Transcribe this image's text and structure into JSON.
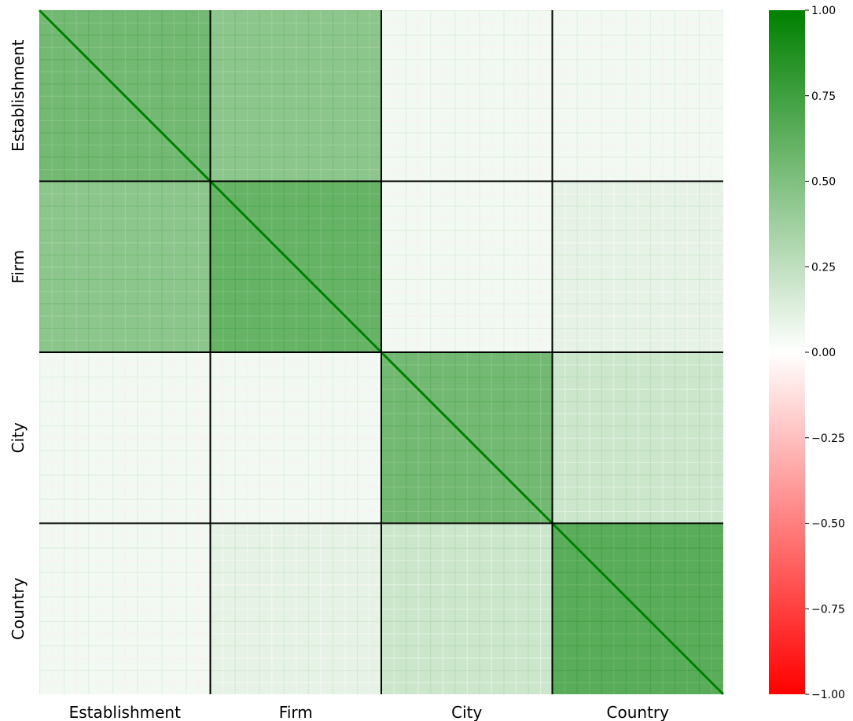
{
  "chart_data": {
    "type": "heatmap",
    "title": "",
    "xlabel": "",
    "ylabel": "",
    "categories": [
      "Establishment",
      "Firm",
      "City",
      "Country"
    ],
    "x_tick_labels": [
      "Establishment",
      "Firm",
      "City",
      "Country"
    ],
    "y_tick_labels": [
      "Establishment",
      "Firm",
      "City",
      "Country"
    ],
    "block_mean_correlation": [
      [
        0.55,
        0.45,
        0.05,
        0.05
      ],
      [
        0.45,
        0.6,
        0.05,
        0.1
      ],
      [
        0.05,
        0.05,
        0.55,
        0.2
      ],
      [
        0.05,
        0.1,
        0.2,
        0.65
      ]
    ],
    "colorbar": {
      "min": -1.0,
      "max": 1.0,
      "ticks": [
        1.0,
        0.75,
        0.5,
        0.25,
        0.0,
        -0.25,
        -0.5,
        -0.75,
        -1.0
      ],
      "tick_labels": [
        "1.00",
        "0.75",
        "0.50",
        "0.25",
        "0.00",
        "−0.25",
        "−0.50",
        "−0.75",
        "−1.00"
      ],
      "colors": {
        "low": "#ff0000",
        "mid": "#ffffff",
        "high": "#008000"
      }
    },
    "block_separator_color": "#000000",
    "grid": false,
    "legend": "colorbar-right"
  }
}
